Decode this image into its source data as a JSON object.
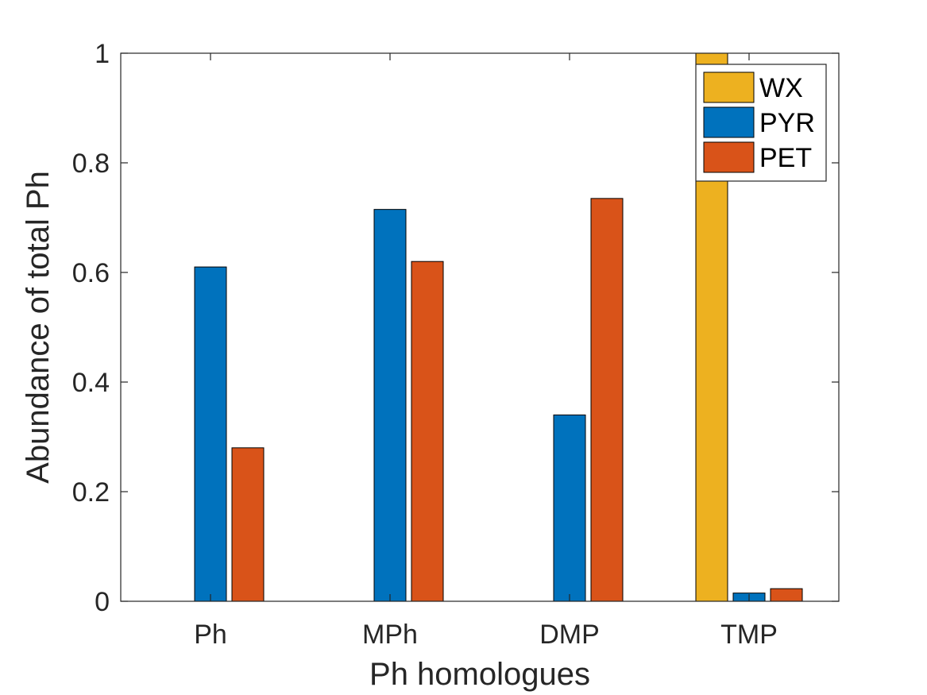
{
  "chart_data": {
    "type": "bar",
    "title": "",
    "xlabel": "Ph homologues",
    "ylabel": "Abundance of total Ph",
    "categories": [
      "Ph",
      "MPh",
      "DMP",
      "TMP"
    ],
    "series": [
      {
        "name": "WX",
        "color": "#EDB120",
        "values": [
          0,
          0,
          0,
          1.0
        ]
      },
      {
        "name": "PYR",
        "color": "#0072BD",
        "values": [
          0.61,
          0.715,
          0.34,
          0.015
        ]
      },
      {
        "name": "PET",
        "color": "#D95319",
        "values": [
          0.28,
          0.62,
          0.735,
          0.023
        ]
      }
    ],
    "ylim": [
      0,
      1
    ],
    "yticks": [
      0,
      0.2,
      0.4,
      0.6,
      0.8,
      1
    ],
    "ytick_labels": [
      "0",
      "0.2",
      "0.4",
      "0.6",
      "0.8",
      "1"
    ],
    "grid": false,
    "legend_position": "top-right"
  }
}
